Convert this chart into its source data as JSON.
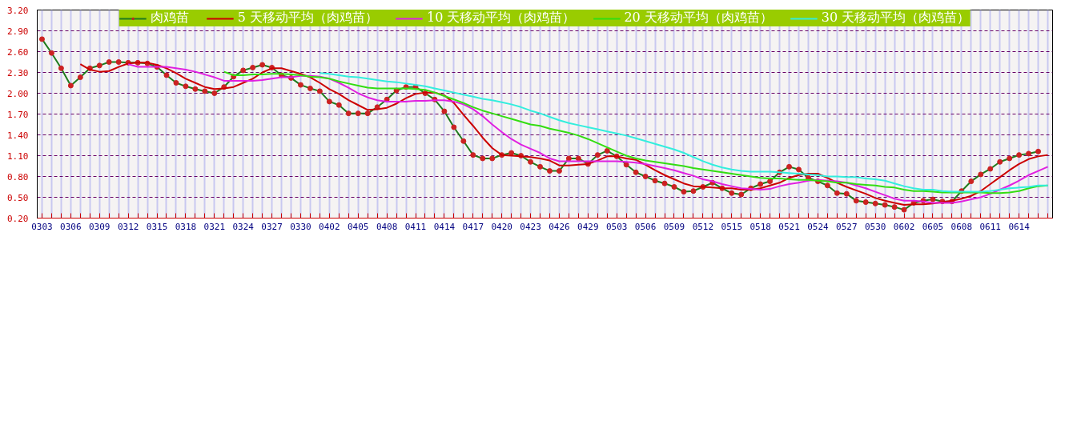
{
  "chart_data": {
    "type": "line",
    "categories": [
      "0303",
      null,
      null,
      "0306",
      null,
      null,
      "0309",
      null,
      null,
      "0312",
      null,
      null,
      "0315",
      null,
      null,
      "0318",
      null,
      null,
      "0321",
      null,
      null,
      "0324",
      null,
      null,
      "0327",
      null,
      null,
      "0330",
      null,
      null,
      "0402",
      null,
      null,
      "0405",
      null,
      null,
      "0408",
      null,
      null,
      "0411",
      null,
      null,
      "0414",
      null,
      null,
      "0417",
      null,
      null,
      "0420",
      null,
      null,
      "0423",
      null,
      null,
      "0426",
      null,
      null,
      "0429",
      null,
      null,
      "0503",
      null,
      null,
      "0506",
      null,
      null,
      "0509",
      null,
      null,
      "0512",
      null,
      null,
      "0515",
      null,
      null,
      "0518",
      null,
      null,
      "0521",
      null,
      null,
      "0524",
      null,
      null,
      "0527",
      null,
      null,
      "0530",
      null,
      null,
      "0602",
      null,
      null,
      "0605",
      null,
      null,
      "0608",
      null,
      null,
      "0611",
      null,
      null,
      "0614",
      null,
      null,
      null
    ],
    "series": [
      {
        "name": "肉鸡苗",
        "color": "#1e7b1e",
        "marker": "circle",
        "values": [
          2.78,
          2.58,
          2.36,
          2.11,
          2.23,
          2.36,
          2.4,
          2.45,
          2.45,
          2.44,
          2.44,
          2.43,
          2.38,
          2.26,
          2.15,
          2.1,
          2.06,
          2.03,
          2.0,
          2.09,
          2.24,
          2.33,
          2.37,
          2.41,
          2.37,
          2.26,
          2.22,
          2.12,
          2.07,
          2.03,
          1.88,
          1.83,
          1.71,
          1.71,
          1.71,
          1.8,
          1.91,
          2.04,
          2.09,
          2.09,
          2.0,
          1.91,
          1.74,
          1.51,
          1.31,
          1.11,
          1.06,
          1.06,
          1.11,
          1.14,
          1.1,
          1.01,
          0.94,
          0.88,
          0.88,
          1.06,
          1.06,
          0.98,
          1.11,
          1.17,
          1.09,
          0.97,
          0.86,
          0.8,
          0.74,
          0.7,
          0.65,
          0.58,
          0.59,
          0.65,
          0.71,
          0.63,
          0.56,
          0.54,
          0.63,
          0.69,
          0.73,
          0.86,
          0.94,
          0.9,
          0.78,
          0.73,
          0.67,
          0.56,
          0.55,
          0.45,
          0.43,
          0.41,
          0.39,
          0.36,
          0.32,
          0.42,
          0.45,
          0.47,
          0.44,
          0.44,
          0.59,
          0.73,
          0.83,
          0.91,
          1.01,
          1.06,
          1.11,
          1.13,
          1.16,
          null
        ]
      },
      {
        "name": "5 天移动平均（肉鸡苗）",
        "color": "#cc0000",
        "values": [
          null,
          null,
          null,
          null,
          2.42,
          2.34,
          2.31,
          2.32,
          2.38,
          2.43,
          2.44,
          2.44,
          2.41,
          2.36,
          2.29,
          2.21,
          2.15,
          2.09,
          2.06,
          2.07,
          2.09,
          2.15,
          2.21,
          2.3,
          2.36,
          2.36,
          2.32,
          2.28,
          2.23,
          2.15,
          2.06,
          1.99,
          1.9,
          1.83,
          1.76,
          1.77,
          1.79,
          1.85,
          1.93,
          1.99,
          2.01,
          2.01,
          1.97,
          1.86,
          1.69,
          1.53,
          1.36,
          1.21,
          1.11,
          1.1,
          1.09,
          1.08,
          1.06,
          1.03,
          0.96,
          0.96,
          0.97,
          0.98,
          1.03,
          1.09,
          1.09,
          1.06,
          1.04,
          0.97,
          0.89,
          0.82,
          0.76,
          0.7,
          0.66,
          0.65,
          0.64,
          0.63,
          0.63,
          0.61,
          0.61,
          0.63,
          0.67,
          0.71,
          0.78,
          0.82,
          0.84,
          0.84,
          0.78,
          0.71,
          0.65,
          0.6,
          0.55,
          0.49,
          0.45,
          0.42,
          0.39,
          0.4,
          0.4,
          0.41,
          0.43,
          0.45,
          0.48,
          0.52,
          0.59,
          0.69,
          0.79,
          0.89,
          0.98,
          1.05,
          1.09,
          1.11
        ]
      },
      {
        "name": "10 天移动平均（肉鸡苗）",
        "color": "#e020e0",
        "values": [
          null,
          null,
          null,
          null,
          null,
          null,
          null,
          null,
          null,
          2.42,
          2.38,
          2.38,
          2.38,
          2.38,
          2.36,
          2.34,
          2.31,
          2.27,
          2.23,
          2.18,
          2.18,
          2.18,
          2.18,
          2.19,
          2.21,
          2.23,
          2.23,
          2.25,
          2.25,
          2.24,
          2.21,
          2.15,
          2.08,
          2.0,
          1.94,
          1.9,
          1.88,
          1.88,
          1.88,
          1.89,
          1.89,
          1.9,
          1.9,
          1.88,
          1.84,
          1.77,
          1.67,
          1.55,
          1.44,
          1.34,
          1.26,
          1.2,
          1.14,
          1.06,
          1.02,
          1.02,
          1.02,
          1.02,
          1.02,
          1.02,
          1.02,
          1.01,
          1.0,
          0.98,
          0.95,
          0.92,
          0.89,
          0.85,
          0.81,
          0.76,
          0.73,
          0.69,
          0.66,
          0.63,
          0.62,
          0.61,
          0.62,
          0.66,
          0.69,
          0.71,
          0.74,
          0.75,
          0.74,
          0.73,
          0.71,
          0.67,
          0.63,
          0.58,
          0.53,
          0.48,
          0.45,
          0.45,
          0.44,
          0.42,
          0.42,
          0.42,
          0.44,
          0.47,
          0.5,
          0.55,
          0.61,
          0.67,
          0.74,
          0.82,
          0.88,
          0.94
        ]
      },
      {
        "name": "20 天移动平均（肉鸡苗）",
        "color": "#33dd11",
        "values": [
          null,
          null,
          null,
          null,
          null,
          null,
          null,
          null,
          null,
          null,
          null,
          null,
          null,
          null,
          null,
          null,
          null,
          null,
          null,
          2.31,
          2.26,
          2.26,
          2.27,
          2.27,
          2.28,
          2.28,
          2.27,
          2.26,
          2.24,
          2.23,
          2.21,
          2.17,
          2.14,
          2.11,
          2.08,
          2.07,
          2.07,
          2.07,
          2.07,
          2.06,
          2.05,
          2.01,
          1.96,
          1.91,
          1.86,
          1.8,
          1.75,
          1.71,
          1.67,
          1.63,
          1.59,
          1.55,
          1.53,
          1.49,
          1.46,
          1.43,
          1.39,
          1.34,
          1.28,
          1.22,
          1.16,
          1.1,
          1.06,
          1.03,
          1.01,
          0.99,
          0.97,
          0.95,
          0.92,
          0.9,
          0.88,
          0.86,
          0.84,
          0.82,
          0.8,
          0.78,
          0.77,
          0.77,
          0.76,
          0.75,
          0.75,
          0.74,
          0.73,
          0.71,
          0.71,
          0.69,
          0.68,
          0.67,
          0.65,
          0.64,
          0.61,
          0.59,
          0.59,
          0.58,
          0.57,
          0.57,
          0.57,
          0.57,
          0.57,
          0.56,
          0.56,
          0.57,
          0.59,
          0.63,
          0.66,
          0.67
        ]
      },
      {
        "name": "30 天移动平均（肉鸡苗）",
        "color": "#33eedd",
        "values": [
          null,
          null,
          null,
          null,
          null,
          null,
          null,
          null,
          null,
          null,
          null,
          null,
          null,
          null,
          null,
          null,
          null,
          null,
          null,
          null,
          null,
          null,
          null,
          null,
          null,
          null,
          null,
          null,
          null,
          2.29,
          2.28,
          2.26,
          2.24,
          2.23,
          2.21,
          2.19,
          2.17,
          2.16,
          2.14,
          2.12,
          2.1,
          2.07,
          2.04,
          2.01,
          1.98,
          1.95,
          1.92,
          1.9,
          1.87,
          1.84,
          1.8,
          1.75,
          1.71,
          1.66,
          1.61,
          1.57,
          1.54,
          1.51,
          1.48,
          1.45,
          1.42,
          1.39,
          1.35,
          1.31,
          1.27,
          1.23,
          1.19,
          1.14,
          1.08,
          1.02,
          0.97,
          0.93,
          0.9,
          0.88,
          0.87,
          0.87,
          0.87,
          0.86,
          0.85,
          0.84,
          0.83,
          0.82,
          0.8,
          0.8,
          0.79,
          0.79,
          0.77,
          0.76,
          0.74,
          0.7,
          0.66,
          0.63,
          0.61,
          0.61,
          0.59,
          0.58,
          0.58,
          0.58,
          0.58,
          0.59,
          0.61,
          0.63,
          0.64,
          0.65,
          0.67,
          0.67
        ]
      }
    ],
    "ylim": [
      0.2,
      3.2
    ],
    "yticks": [
      {
        "value": 0.2,
        "label": "0.20"
      },
      {
        "value": 0.5,
        "label": "0.50"
      },
      {
        "value": 0.8,
        "label": "0.80"
      },
      {
        "value": 1.1,
        "label": "1.10"
      },
      {
        "value": 1.4,
        "label": "1.40"
      },
      {
        "value": 1.7,
        "label": "1.70"
      },
      {
        "value": 2.0,
        "label": "2.00"
      },
      {
        "value": 2.3,
        "label": "2.30"
      },
      {
        "value": 2.6,
        "label": "2.60"
      },
      {
        "value": 2.9,
        "label": "2.90"
      },
      {
        "value": 3.2,
        "label": "3.20"
      }
    ],
    "grid": true,
    "legend": "top"
  }
}
